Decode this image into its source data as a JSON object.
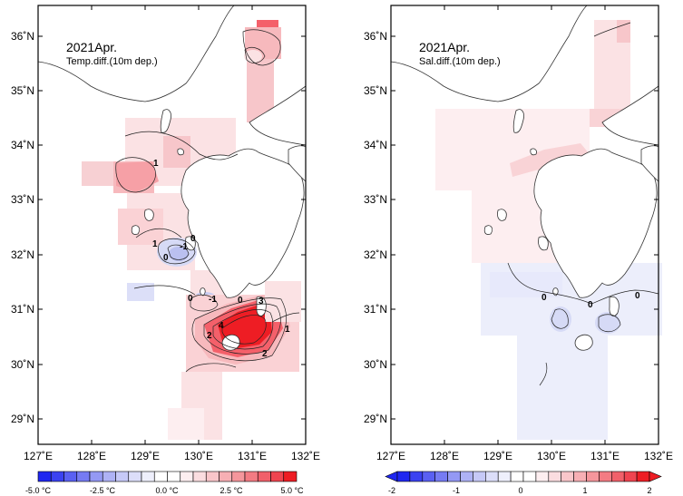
{
  "maps": [
    {
      "title": "2021Apr.",
      "subtitle": "Temp.diff.(10m dep.)",
      "x_ticks": [
        "127˚E",
        "128˚E",
        "129˚E",
        "130˚E",
        "131˚E",
        "132˚E"
      ],
      "y_ticks": [
        "36˚N",
        "35˚N",
        "34˚N",
        "33˚N",
        "32˚N",
        "31˚N",
        "30˚N",
        "29˚N"
      ],
      "colorbar_labels": [
        "-5.0 °C",
        "-2.5 °C",
        "0.0 °C",
        "2.5 °C",
        "5.0 °C"
      ],
      "contour_labels": [
        "1",
        "1",
        "-1",
        "0",
        "0",
        "0",
        "-1",
        "4",
        "2",
        "2",
        "3",
        "0",
        "1"
      ]
    },
    {
      "title": "2021Apr.",
      "subtitle": "Sal.diff.(10m dep.)",
      "x_ticks": [
        "127˚E",
        "128˚E",
        "129˚E",
        "130˚E",
        "131˚E",
        "132˚E"
      ],
      "y_ticks": [
        "36˚N",
        "35˚N",
        "34˚N",
        "33˚N",
        "32˚N",
        "31˚N",
        "30˚N",
        "29˚N"
      ],
      "colorbar_labels": [
        "-2",
        "-1",
        "0",
        "1",
        "2"
      ],
      "contour_labels": [
        "0",
        "0",
        "0"
      ]
    }
  ],
  "colors": {
    "deep_red": "#ee1d24",
    "red": "#f4606a",
    "pink": "#f7b9bd",
    "light_pink": "#fbe2e4",
    "light_blue": "#e3e5fa",
    "blue": "#bac0f0",
    "deep_blue": "#1f27f0"
  }
}
